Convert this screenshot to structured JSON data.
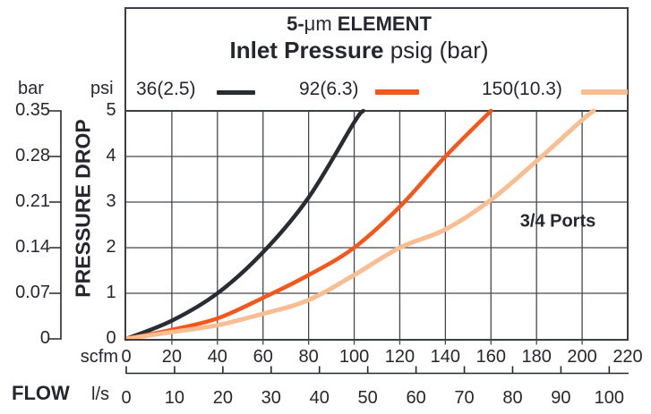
{
  "figure": {
    "title_line1": {
      "pre": "5-",
      "mu": "μm",
      "post": " ELEMENT"
    },
    "title_line2": {
      "bold": "Inlet Pressure",
      "regular": " psig (bar)"
    },
    "annotation": "3/4 Ports",
    "y_axis": {
      "left_unit": "bar",
      "right_unit": "psi",
      "label": "PRESSURE DROP",
      "bar_ticks": [
        "0.35",
        "0.28",
        "0.21",
        "0.14",
        "0.07",
        "0"
      ],
      "psi_ticks": [
        "5",
        "4",
        "3",
        "2",
        "1",
        "0"
      ]
    },
    "x_axis": {
      "unit_top": "scfm",
      "label": "FLOW",
      "unit_bottom": "l/s",
      "scfm_ticks": [
        0,
        20,
        40,
        60,
        80,
        100,
        120,
        140,
        160,
        180,
        200,
        220
      ],
      "ls_ticks": [
        0,
        10,
        20,
        30,
        40,
        50,
        60,
        70,
        80,
        90,
        100
      ]
    },
    "colors": {
      "text": "#26272e",
      "frame": "#3b3e45",
      "grid": "#45484e"
    }
  },
  "chart_data": {
    "type": "line",
    "title": "5-μm ELEMENT",
    "subtitle": "Inlet Pressure psig (bar)",
    "annotation": "3/4 Ports",
    "xlabel": "FLOW",
    "x_units": [
      "scfm",
      "l/s"
    ],
    "ylabel": "PRESSURE DROP",
    "y_units": [
      "psi",
      "bar"
    ],
    "xlim_scfm": [
      0,
      220
    ],
    "xlim_ls": [
      0,
      100
    ],
    "ylim_psi": [
      0,
      5
    ],
    "ylim_bar": [
      0,
      0.35
    ],
    "grid": true,
    "legend_position": "top",
    "ls_per_scfm_factor": 2.1189,
    "series": [
      {
        "name": "36(2.5)",
        "color": "#2a2c33",
        "points_scfm_psi": [
          [
            0,
            0
          ],
          [
            20,
            0.4
          ],
          [
            40,
            1.0
          ],
          [
            60,
            1.9
          ],
          [
            80,
            3.1
          ],
          [
            100,
            4.75
          ],
          [
            104,
            5.0
          ]
        ]
      },
      {
        "name": "92(6.3)",
        "color": "#f4571c",
        "points_scfm_psi": [
          [
            0,
            0
          ],
          [
            20,
            0.2
          ],
          [
            40,
            0.45
          ],
          [
            60,
            0.9
          ],
          [
            80,
            1.4
          ],
          [
            100,
            2.0
          ],
          [
            120,
            2.9
          ],
          [
            140,
            4.0
          ],
          [
            160,
            5.0
          ]
        ]
      },
      {
        "name": "150(10.3)",
        "color": "#f9bd92",
        "points_scfm_psi": [
          [
            0,
            0
          ],
          [
            20,
            0.15
          ],
          [
            40,
            0.3
          ],
          [
            60,
            0.55
          ],
          [
            80,
            0.85
          ],
          [
            100,
            1.4
          ],
          [
            120,
            2.0
          ],
          [
            140,
            2.4
          ],
          [
            160,
            3.05
          ],
          [
            180,
            3.9
          ],
          [
            200,
            4.8
          ],
          [
            205,
            5.0
          ]
        ]
      }
    ]
  }
}
